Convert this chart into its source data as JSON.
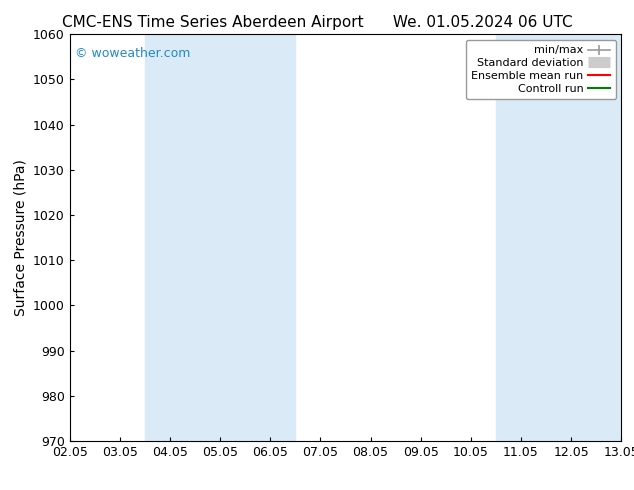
{
  "title_left": "CMC-ENS Time Series Aberdeen Airport",
  "title_right": "We. 01.05.2024 06 UTC",
  "ylabel": "Surface Pressure (hPa)",
  "xlim_labels": [
    "02.05",
    "03.05",
    "04.05",
    "05.05",
    "06.05",
    "07.05",
    "08.05",
    "09.05",
    "10.05",
    "11.05",
    "12.05",
    "13.05"
  ],
  "ylim": [
    970,
    1060
  ],
  "yticks": [
    970,
    980,
    990,
    1000,
    1010,
    1020,
    1030,
    1040,
    1050,
    1060
  ],
  "shaded_color": "#daeaf7",
  "watermark_text": "© woweather.com",
  "watermark_color": "#2288cc",
  "bg_color": "#ffffff",
  "plot_bg_color": "#ffffff",
  "spine_color": "#000000",
  "tick_color": "#000000",
  "title_fontsize": 11,
  "axis_label_fontsize": 10,
  "tick_fontsize": 9,
  "legend_fontsize": 8
}
